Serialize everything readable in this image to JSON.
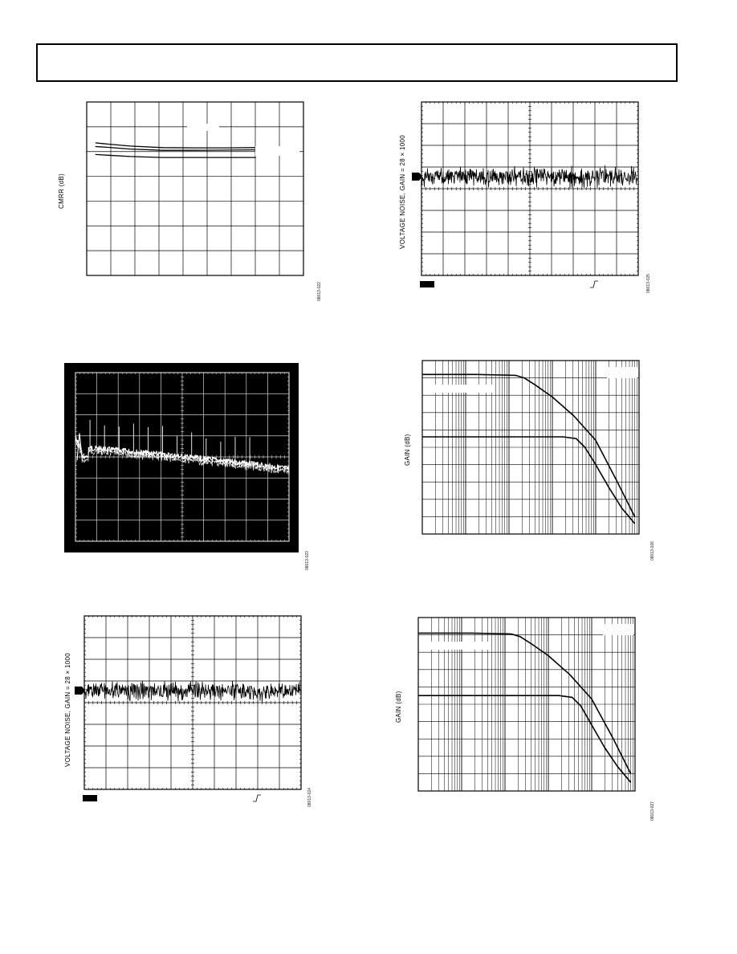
{
  "chart_data": [
    {
      "id": "cmrr",
      "type": "line",
      "ylabel": "CMRR (dB)",
      "figure_id": "08013-022",
      "grid": true,
      "series": [
        {
          "x": [
            0.04,
            0.1,
            0.2,
            0.35,
            0.5,
            0.65,
            0.78
          ],
          "y": [
            5.35,
            5.3,
            5.22,
            5.16,
            5.15,
            5.15,
            5.16
          ]
        },
        {
          "x": [
            0.04,
            0.1,
            0.2,
            0.35,
            0.5,
            0.65,
            0.78
          ],
          "y": [
            5.2,
            5.17,
            5.1,
            5.05,
            5.05,
            5.06,
            5.07
          ]
        },
        {
          "x": [
            0.04,
            0.1,
            0.2,
            0.35,
            0.5,
            0.65,
            0.78
          ],
          "y": [
            4.88,
            4.85,
            4.8,
            4.76,
            4.76,
            4.76,
            4.76
          ]
        }
      ]
    },
    {
      "id": "voltage-noise-top",
      "type": "line",
      "ylabel": "VOLTAGE NOISE, GAIN = 28 × 1000",
      "figure_id": "08013-025",
      "grid": true,
      "baseline_level": 0.43,
      "noise_amplitude": 0.06
    },
    {
      "id": "spectrum",
      "type": "line",
      "ylabel": "",
      "figure_id": "08013-023",
      "grid": true,
      "background": "#000000",
      "trace_color": "#ffffff"
    },
    {
      "id": "gain-top",
      "type": "line",
      "ylabel": "GAIN (dB)",
      "figure_id": "08013-026",
      "grid": true,
      "xscale": "log",
      "series": [
        {
          "x": [
            0.0,
            0.25,
            0.43,
            0.47,
            0.52,
            0.6,
            0.7,
            0.8,
            0.9,
            0.98
          ],
          "y": [
            0.92,
            0.92,
            0.915,
            0.9,
            0.86,
            0.79,
            0.68,
            0.54,
            0.3,
            0.1
          ]
        },
        {
          "x": [
            0.0,
            0.25,
            0.5,
            0.65,
            0.71,
            0.75,
            0.8,
            0.86,
            0.92,
            0.98
          ],
          "y": [
            0.56,
            0.56,
            0.56,
            0.56,
            0.55,
            0.5,
            0.4,
            0.27,
            0.15,
            0.06
          ]
        }
      ]
    },
    {
      "id": "voltage-noise-bottom",
      "type": "line",
      "ylabel": "VOLTAGE NOISE, GAIN = 28 × 1000",
      "figure_id": "08013-024",
      "grid": true,
      "baseline_level": 0.43,
      "noise_amplitude": 0.06
    },
    {
      "id": "gain-bottom",
      "type": "line",
      "ylabel": "GAIN (dB)",
      "figure_id": "08013-027",
      "grid": true,
      "xscale": "log",
      "series": [
        {
          "x": [
            0.0,
            0.25,
            0.43,
            0.47,
            0.52,
            0.6,
            0.7,
            0.8,
            0.9,
            0.98
          ],
          "y": [
            0.91,
            0.91,
            0.905,
            0.89,
            0.85,
            0.78,
            0.67,
            0.53,
            0.3,
            0.1
          ]
        },
        {
          "x": [
            0.0,
            0.25,
            0.5,
            0.65,
            0.71,
            0.75,
            0.8,
            0.86,
            0.92,
            0.98
          ],
          "y": [
            0.55,
            0.55,
            0.55,
            0.55,
            0.54,
            0.49,
            0.38,
            0.25,
            0.14,
            0.05
          ]
        }
      ]
    }
  ]
}
